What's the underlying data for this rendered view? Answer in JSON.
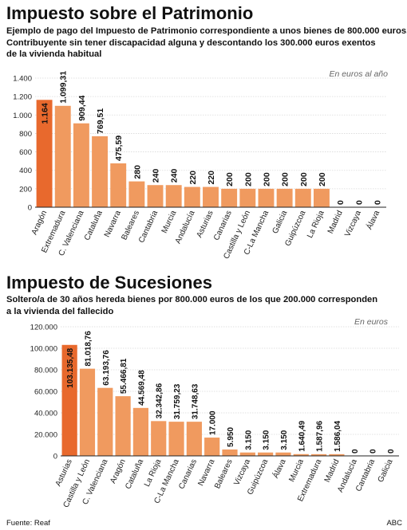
{
  "colors": {
    "highlight": "#e8692d",
    "bar": "#f09a5f",
    "grid": "#d9d9d9",
    "axis": "#222222",
    "unit": "#666666"
  },
  "footer": {
    "source": "Fuente: Reaf",
    "credit": "ABC"
  },
  "chart_data": [
    {
      "type": "bar",
      "title": "Impuesto sobre el Patrimonio",
      "subtitle": [
        "Ejemplo de pago del Impuesto de Patrimonio correspondiente a unos bienes de 800.000 euros.",
        "Contribuyente sin tener discapacidad alguna y descontando los 300.000 euros exentos",
        "de la vivienda habitual"
      ],
      "unit": "En euros al año",
      "categories": [
        "Aragón",
        "Extremadura",
        "C. Valenciana",
        "Cataluña",
        "Navarra",
        "Baleares",
        "Cantabria",
        "Murcia",
        "Andalucía",
        "Asturias",
        "Canarias",
        "Castilla y León",
        "C-La Mancha",
        "Galicia",
        "Guipúzcoa",
        "La Rioja",
        "Madrid",
        "Vizcaya",
        "Álava"
      ],
      "values": [
        1164,
        1099.31,
        909.44,
        769.51,
        475.59,
        280,
        240,
        240,
        220,
        220,
        200,
        200,
        200,
        200,
        200,
        200,
        0,
        0,
        0
      ],
      "value_labels": [
        "1.164",
        "1.099,31",
        "909,44",
        "769,51",
        "475,59",
        "280",
        "240",
        "240",
        "220",
        "220",
        "200",
        "200",
        "200",
        "200",
        "200",
        "200",
        "0",
        "0",
        "0"
      ],
      "yticks": [
        0,
        200,
        400,
        600,
        800,
        1000,
        1200,
        1400
      ],
      "ytick_labels": [
        "0",
        "200",
        "400",
        "600",
        "800",
        "1.000",
        "1.200",
        "1.400"
      ],
      "ylim": [
        0,
        1400
      ],
      "grid": true
    },
    {
      "type": "bar",
      "title": "Impuesto de Sucesiones",
      "subtitle": [
        "Soltero/a de 30 años hereda bienes por 800.000 euros de los que 200.000 corresponden",
        "a la vivienda del fallecido"
      ],
      "unit": "En euros",
      "categories": [
        "Asturias",
        "Castilla y León",
        "C. Valenciana",
        "Aragón",
        "Cataluña",
        "La Rioja",
        "C-La Mancha",
        "Canarias",
        "Navarra",
        "Baleares",
        "Vizcaya",
        "Guipúzcoa",
        "Álava",
        "Murcia",
        "Extremadura",
        "Madrid",
        "Andalucía",
        "Cantabria",
        "Galicia"
      ],
      "values": [
        103135.48,
        81018.76,
        63193.76,
        55466.81,
        44569.48,
        32342.86,
        31759.23,
        31748.63,
        17000,
        5950,
        3150,
        3150,
        3150,
        1640.49,
        1587.96,
        1586.04,
        0,
        0,
        0
      ],
      "value_labels": [
        "103.135,48",
        "81.018,76",
        "63.193,76",
        "55.466,81",
        "44.569,48",
        "32.342,86",
        "31.759,23",
        "31.748,63",
        "17.000",
        "5.950",
        "3.150",
        "3.150",
        "3.150",
        "1.640,49",
        "1.587,96",
        "1.586,04",
        "0",
        "0",
        "0"
      ],
      "yticks": [
        0,
        20000,
        40000,
        60000,
        80000,
        100000,
        120000
      ],
      "ytick_labels": [
        "0",
        "20.000",
        "40.000",
        "60.000",
        "80.000",
        "100.000",
        "120.000"
      ],
      "ylim": [
        0,
        120000
      ],
      "grid": true
    }
  ]
}
